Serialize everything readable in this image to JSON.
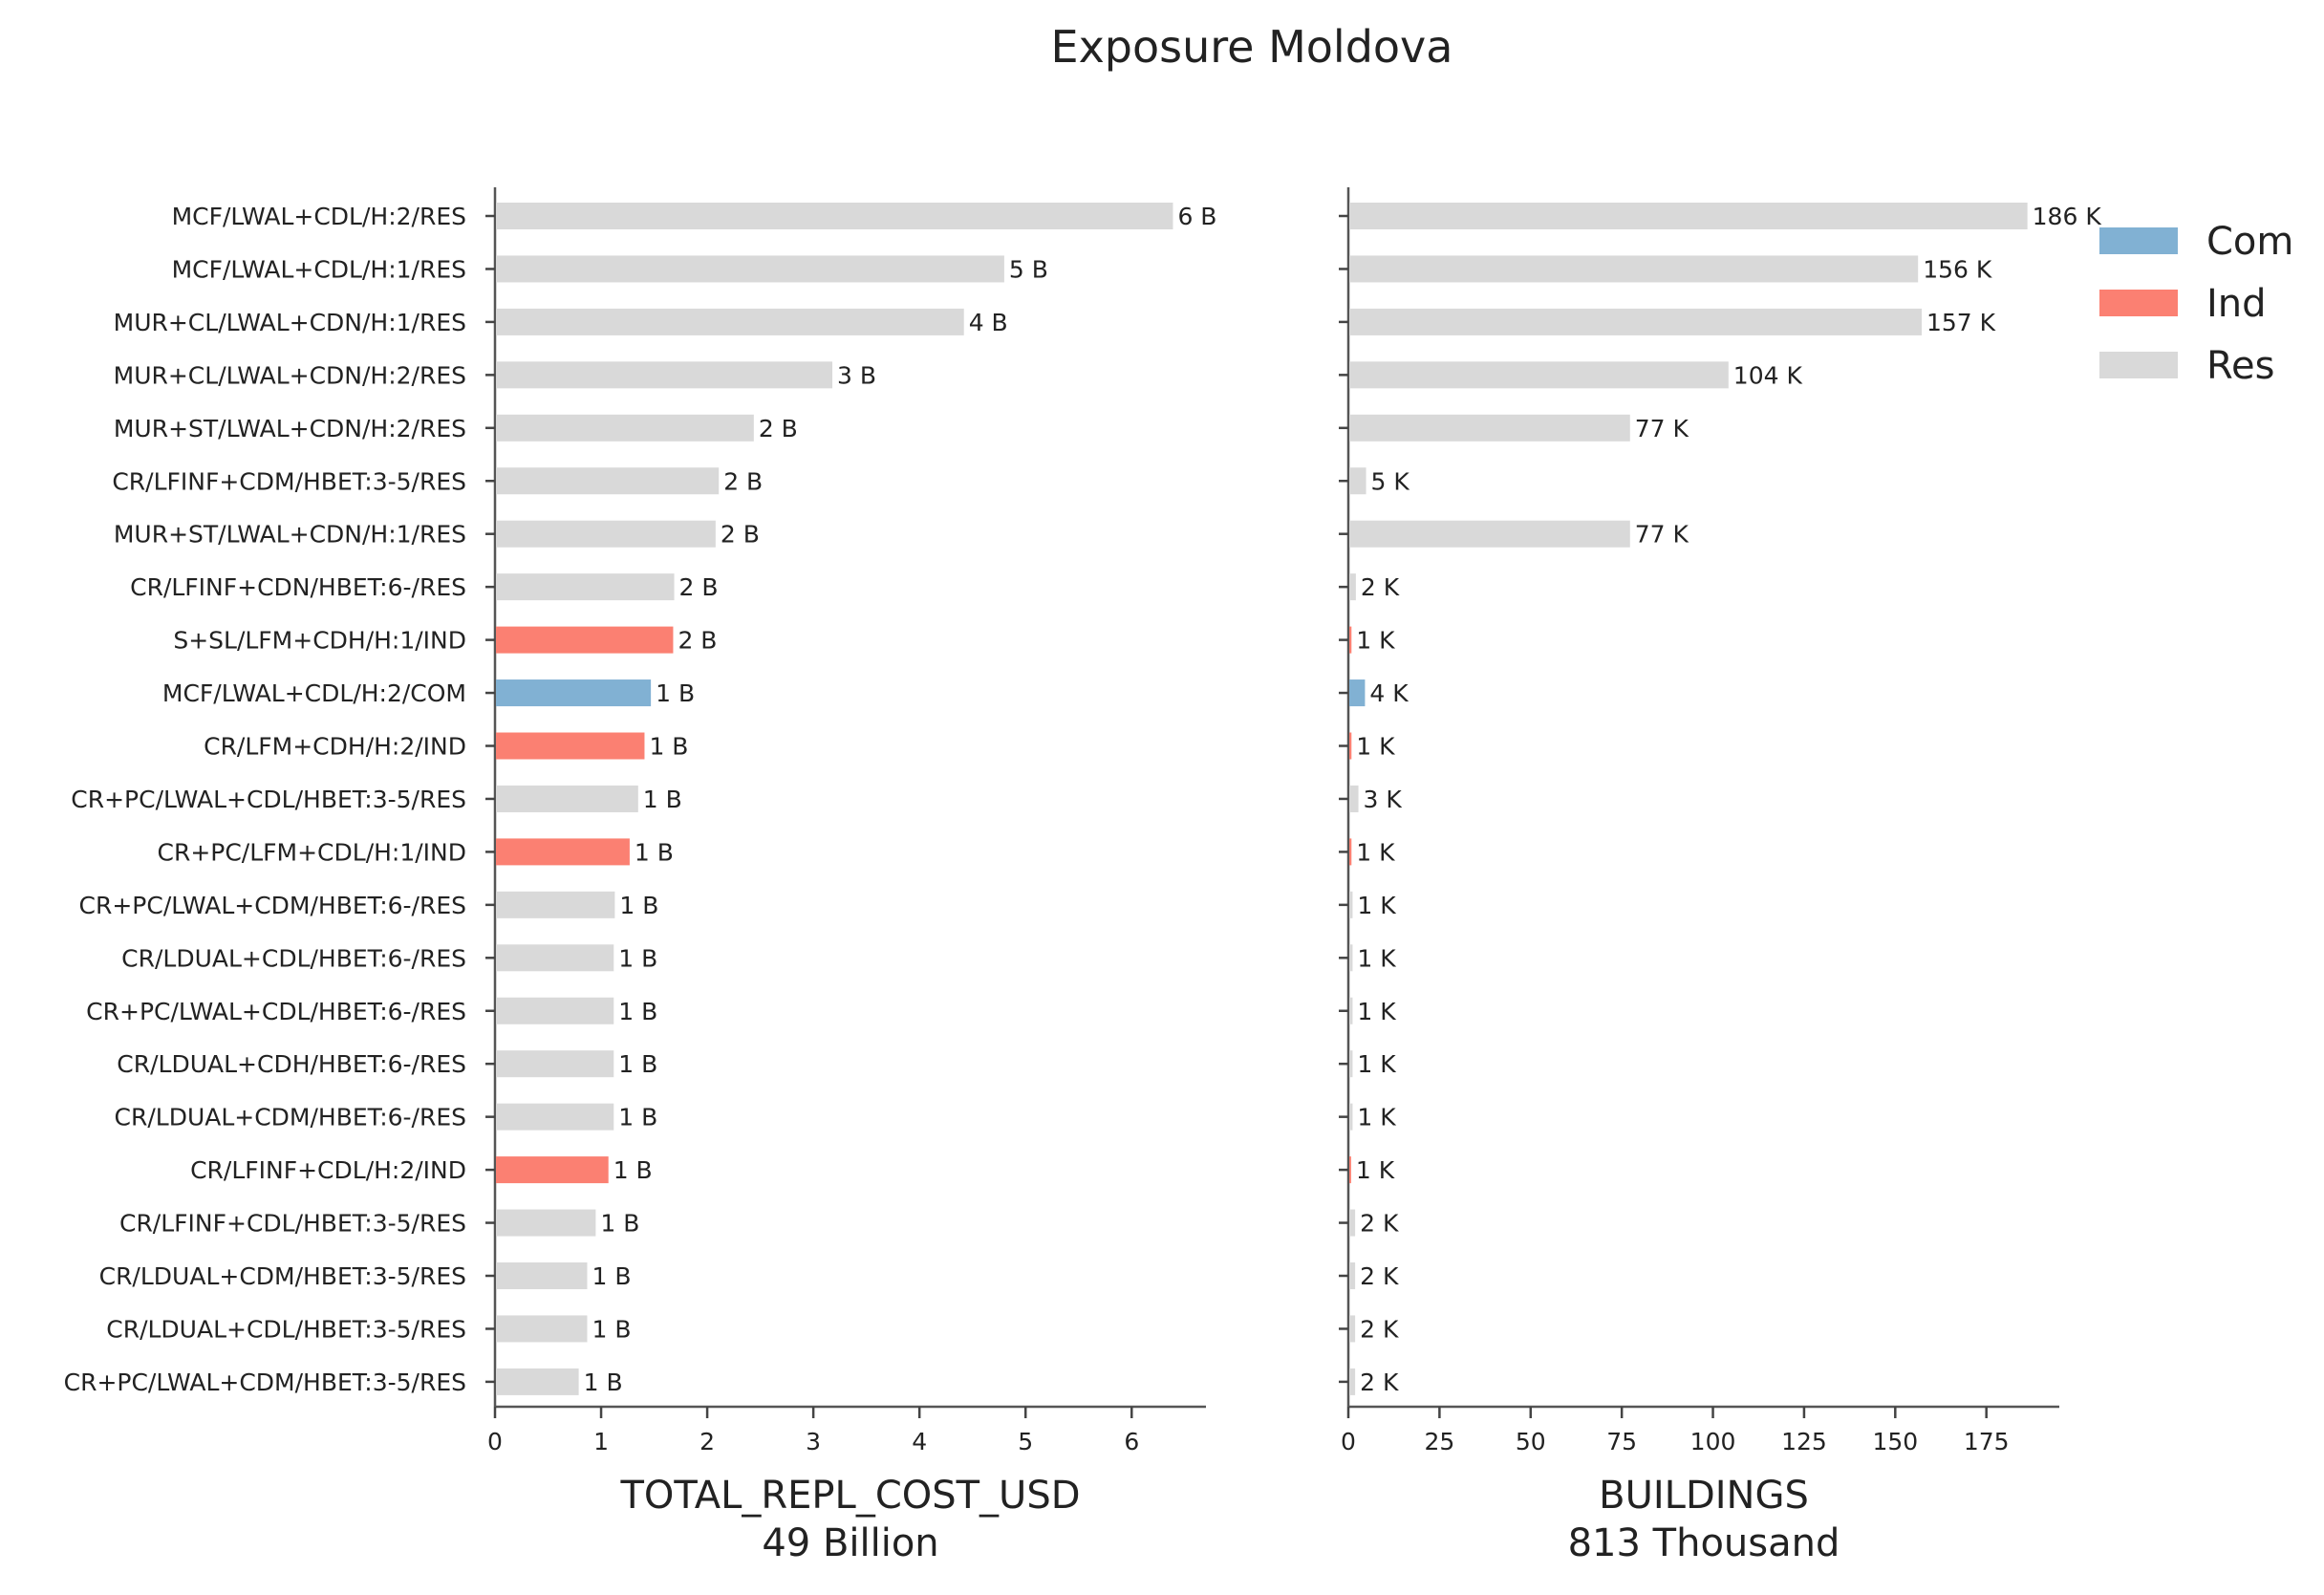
{
  "title": "Exposure Moldova",
  "colors": {
    "Com": "#81b1d3",
    "Ind": "#fb8072",
    "Res": "#d9d9d9"
  },
  "legend": {
    "placement": "top-right",
    "entries": [
      "Com",
      "Ind",
      "Res"
    ]
  },
  "chart_data": [
    {
      "type": "bar",
      "orientation": "horizontal",
      "xlabel": "TOTAL_REPL_COST_USD",
      "xlabel_sub": "49 Billion",
      "xlim": [
        0,
        6.7
      ],
      "xticks": [
        0,
        1,
        2,
        3,
        4,
        5,
        6
      ],
      "categories": [
        "MCF/LWAL+CDL/H:2/RES",
        "MCF/LWAL+CDL/H:1/RES",
        "MUR+CL/LWAL+CDN/H:1/RES",
        "MUR+CL/LWAL+CDN/H:2/RES",
        "MUR+ST/LWAL+CDN/H:2/RES",
        "CR/LFINF+CDM/HBET:3-5/RES",
        "MUR+ST/LWAL+CDN/H:1/RES",
        "CR/LFINF+CDN/HBET:6-/RES",
        "S+SL/LFM+CDH/H:1/IND",
        "MCF/LWAL+CDL/H:2/COM",
        "CR/LFM+CDH/H:2/IND",
        "CR+PC/LWAL+CDL/HBET:3-5/RES",
        "CR+PC/LFM+CDL/H:1/IND",
        "CR+PC/LWAL+CDM/HBET:6-/RES",
        "CR/LDUAL+CDL/HBET:6-/RES",
        "CR+PC/LWAL+CDL/HBET:6-/RES",
        "CR/LDUAL+CDH/HBET:6-/RES",
        "CR/LDUAL+CDM/HBET:6-/RES",
        "CR/LFINF+CDL/H:2/IND",
        "CR/LFINF+CDL/HBET:3-5/RES",
        "CR/LDUAL+CDM/HBET:3-5/RES",
        "CR/LDUAL+CDL/HBET:3-5/RES",
        "CR+PC/LWAL+CDM/HBET:3-5/RES"
      ],
      "groups": [
        "Res",
        "Res",
        "Res",
        "Res",
        "Res",
        "Res",
        "Res",
        "Res",
        "Ind",
        "Com",
        "Ind",
        "Res",
        "Ind",
        "Res",
        "Res",
        "Res",
        "Res",
        "Res",
        "Ind",
        "Res",
        "Res",
        "Res",
        "Res"
      ],
      "values": [
        6.38,
        4.79,
        4.41,
        3.17,
        2.43,
        2.1,
        2.07,
        1.68,
        1.67,
        1.46,
        1.4,
        1.34,
        1.26,
        1.12,
        1.11,
        1.11,
        1.11,
        1.11,
        1.06,
        0.94,
        0.86,
        0.86,
        0.78
      ],
      "data_labels": [
        "6 B",
        "5 B",
        "4 B",
        "3 B",
        "2 B",
        "2 B",
        "2 B",
        "2 B",
        "2 B",
        "1 B",
        "1 B",
        "1 B",
        "1 B",
        "1 B",
        "1 B",
        "1 B",
        "1 B",
        "1 B",
        "1 B",
        "1 B",
        "1 B",
        "1 B",
        "1 B"
      ]
    },
    {
      "type": "bar",
      "orientation": "horizontal",
      "xlabel": "BUILDINGS",
      "xlabel_sub": "813 Thousand",
      "xlim": [
        0,
        195
      ],
      "xticks": [
        0,
        25,
        50,
        75,
        100,
        125,
        150,
        175
      ],
      "groups": [
        "Res",
        "Res",
        "Res",
        "Res",
        "Res",
        "Res",
        "Res",
        "Res",
        "Ind",
        "Com",
        "Ind",
        "Res",
        "Ind",
        "Res",
        "Res",
        "Res",
        "Res",
        "Res",
        "Ind",
        "Res",
        "Res",
        "Res",
        "Res"
      ],
      "values": [
        186,
        156,
        157,
        104,
        77,
        4.6,
        77,
        1.8,
        0.6,
        4.3,
        0.6,
        2.5,
        0.6,
        0.9,
        0.9,
        0.9,
        0.9,
        0.9,
        0.5,
        1.6,
        1.6,
        1.6,
        1.6
      ],
      "data_labels": [
        "186 K",
        "156 K",
        "157 K",
        "104 K",
        "77 K",
        "5 K",
        "77 K",
        "2 K",
        "1 K",
        "4 K",
        "1 K",
        "3 K",
        "1 K",
        "1 K",
        "1 K",
        "1 K",
        "1 K",
        "1 K",
        "1 K",
        "2 K",
        "2 K",
        "2 K",
        "2 K"
      ]
    }
  ]
}
